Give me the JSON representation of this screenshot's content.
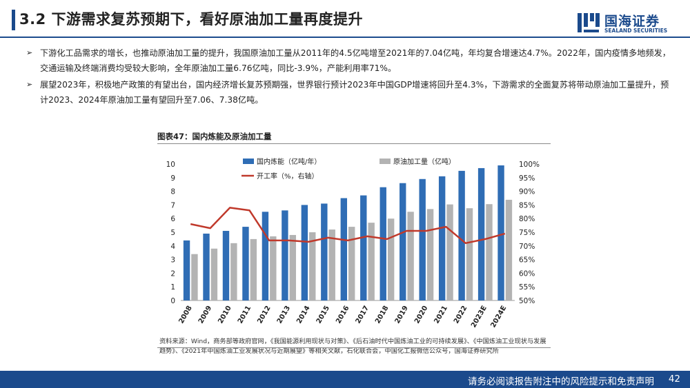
{
  "header": {
    "title": "3.2 下游需求复苏预期下，看好原油加工量再度提升"
  },
  "logo": {
    "cn": "国海证券",
    "en": "SEALAND SECURITIES"
  },
  "bullets": [
    "下游化工品需求的增长，也推动原油加工量的提升，我国原油加工量从2011年的4.5亿吨增至2021年的7.04亿吨，年均复合增速达4.7%。2022年，国内疫情多地频发，交通运输及终端消费均受较大影响，全年原油加工量6.76亿吨，同比-3.9%，产能利用率71%。",
    "展望2023年，积极地产政策的有望出台，国内经济增长复苏预期强，世界银行预计2023年中国GDP增速将回升至4.3%，下游需求的全面复苏将带动原油加工量提升，预计2023、2024年原油加工量有望回升至7.06、7.38亿吨。"
  ],
  "figure": {
    "title": "图表47：国内炼能及原油加工量",
    "source": "资料来源：Wind，商务部等政府官网，《我国能源利用现状与对策》、《后石油时代中国炼油工业的可持续发展》、《中国炼油工业现状与发展趋势》、《2021年中国炼油工业发展状况与近期展望》等相关文献，石化联合会，中国化工报微信公众号，国海证券研究所"
  },
  "chart_data": {
    "type": "bar",
    "categories": [
      "2008",
      "2009",
      "2010",
      "2011",
      "2012",
      "2013",
      "2014",
      "2015",
      "2016",
      "2017",
      "2018",
      "2019",
      "2020",
      "2021",
      "2022",
      "2023E",
      "2024E"
    ],
    "series": [
      {
        "name": "国内炼能（亿吨/年）",
        "type": "bar",
        "axis": "left",
        "color": "#2f6db5",
        "values": [
          4.4,
          4.9,
          5.1,
          5.4,
          6.5,
          6.6,
          7.0,
          7.1,
          7.5,
          7.7,
          8.3,
          8.6,
          8.9,
          9.1,
          9.5,
          9.7,
          9.9
        ]
      },
      {
        "name": "原油加工量（亿吨）",
        "type": "bar",
        "axis": "left",
        "color": "#b3b3b3",
        "values": [
          3.4,
          3.8,
          4.2,
          4.5,
          4.7,
          4.8,
          5.0,
          5.2,
          5.4,
          5.7,
          6.0,
          6.5,
          6.7,
          7.04,
          6.76,
          7.06,
          7.38
        ]
      },
      {
        "name": "开工率（%，右轴）",
        "type": "line",
        "axis": "right",
        "color": "#c0392b",
        "values": [
          78,
          76.5,
          84,
          83,
          72,
          72,
          71.5,
          73,
          72,
          73.5,
          72.5,
          75.5,
          75.5,
          77,
          71,
          72.5,
          74.5
        ]
      }
    ],
    "yaxis_left": {
      "min": 0,
      "max": 10,
      "ticks": [
        0,
        1,
        2,
        3,
        4,
        5,
        6,
        7,
        8,
        9,
        10
      ]
    },
    "yaxis_right": {
      "min": 50,
      "max": 100,
      "ticks": [
        "50%",
        "55%",
        "60%",
        "65%",
        "70%",
        "75%",
        "80%",
        "85%",
        "90%",
        "95%",
        "100%"
      ]
    },
    "grid": false,
    "legend_position": "top"
  },
  "footer": {
    "disclaimer": "请务必阅读报告附注中的风险提示和免责声明",
    "page": "42"
  },
  "colors": {
    "brand": "#1b4a8c"
  }
}
